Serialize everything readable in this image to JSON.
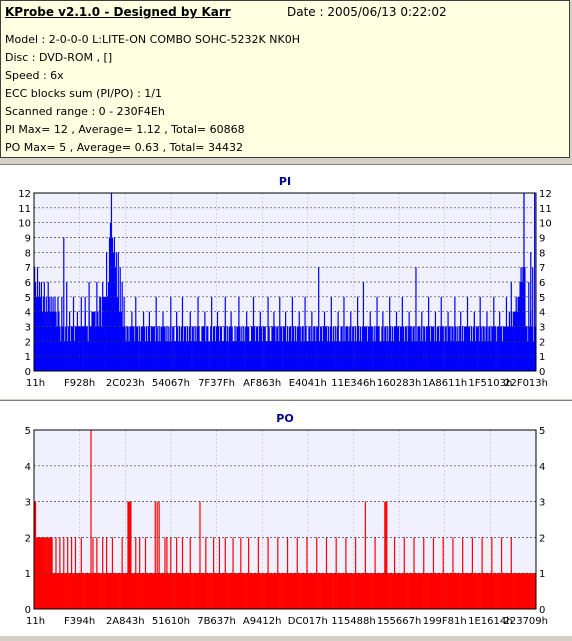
{
  "info": {
    "title": "KProbe v2.1.0 - Designed by Karr",
    "date": "Date : 2005/06/13 0:22:02",
    "lines": [
      "Model : 2-0-0-0 L:LITE-ON COMBO SOHC-5232K NK0H",
      "Disc : DVD-ROM ,  []",
      "Speed : 6x",
      "ECC blocks sum (PI/PO) : 1/1",
      "Scanned range : 0 - 230F4Eh",
      "PI Max= 12 , Average= 1.12 , Total= 60868",
      "PO Max= 5 , Average= 0.63 , Total= 34432"
    ]
  },
  "colors": {
    "pi": "#0000ff",
    "po": "#ff0000",
    "plot_bg": "#f0f0ff",
    "grid": "#404040"
  },
  "chart_data": [
    {
      "type": "bar",
      "title": "PI",
      "ylim": [
        0,
        12
      ],
      "yticks": [
        0,
        1,
        2,
        3,
        4,
        5,
        6,
        7,
        8,
        9,
        10,
        11,
        12
      ],
      "xtick_labels": [
        "11h",
        "F928h",
        "2C023h",
        "54067h",
        "7F37Fh",
        "AF863h",
        "E4041h",
        "11E346h",
        "160283h",
        "1A8611h",
        "1F5103h",
        "22F013h"
      ],
      "grid": true,
      "baseline": [
        4,
        3,
        3,
        2,
        3,
        3,
        4,
        3,
        3,
        2,
        3,
        3,
        3,
        2,
        3,
        2,
        3,
        3,
        2,
        3,
        3,
        2,
        3,
        3,
        3,
        2,
        3,
        2,
        3,
        3,
        3,
        2,
        3,
        3,
        2,
        3,
        3,
        2,
        3,
        3,
        3,
        2,
        3,
        3,
        2,
        3,
        3,
        3,
        2,
        3,
        3,
        3,
        4,
        3,
        3,
        2,
        4,
        3,
        3,
        4,
        2,
        4,
        4,
        3,
        3,
        4,
        3,
        5,
        4,
        3,
        5,
        5,
        5,
        5,
        5,
        5,
        6,
        6,
        7,
        7,
        6,
        6,
        6,
        6,
        5,
        5,
        5,
        4,
        4,
        4,
        3,
        3,
        3,
        3,
        2,
        3,
        3,
        2,
        3,
        3,
        2,
        3,
        3,
        2,
        3,
        3,
        3,
        2,
        3,
        2,
        3,
        3,
        3,
        3,
        2,
        3,
        2,
        3,
        3,
        2,
        3,
        3,
        3,
        3,
        2,
        2,
        3,
        2,
        3,
        2,
        3,
        3,
        2,
        3,
        3,
        2,
        3,
        2,
        3,
        2,
        3,
        2,
        3,
        3,
        2,
        2,
        3,
        3,
        2,
        3,
        2,
        3,
        3,
        2,
        3,
        3,
        2,
        3,
        2,
        3,
        2,
        2,
        3,
        3,
        2,
        3,
        2,
        3,
        2,
        3,
        2,
        2,
        3,
        3,
        3,
        2,
        2,
        3,
        3,
        2,
        2,
        3,
        2,
        2,
        3,
        3,
        2,
        3,
        2,
        3,
        2,
        3,
        3,
        2,
        2,
        3,
        3,
        2,
        3,
        2,
        3,
        3,
        2,
        3,
        2,
        2,
        3,
        2,
        3,
        3,
        2,
        3,
        2,
        3,
        2,
        3,
        2,
        3,
        2,
        3,
        3,
        2,
        2,
        3,
        3,
        2,
        3,
        2,
        3,
        3,
        2,
        3,
        2,
        3,
        2,
        3,
        3,
        3,
        2,
        2,
        3,
        3,
        2,
        2,
        3,
        3,
        2,
        3,
        2,
        3,
        3,
        2,
        2,
        3,
        3,
        2,
        3,
        3,
        2,
        2,
        3,
        2,
        3,
        3,
        2,
        3,
        3,
        2,
        3,
        2,
        3,
        3,
        2,
        3,
        2,
        3,
        3,
        2,
        3,
        3,
        2,
        2,
        3,
        3,
        2,
        3,
        2,
        3,
        3,
        2,
        3,
        3,
        2,
        2,
        3,
        3,
        2,
        3,
        2,
        3,
        3,
        2,
        3,
        2,
        3,
        3,
        2,
        3,
        2,
        3,
        2,
        3,
        3,
        2,
        2,
        3,
        3,
        2,
        3,
        2,
        3,
        3,
        3,
        2,
        3,
        3,
        2,
        3,
        3,
        2,
        3,
        2,
        3,
        3,
        2,
        3,
        2,
        3,
        2,
        3,
        3,
        3,
        2,
        3,
        3,
        2,
        3,
        3,
        2,
        3,
        2,
        3,
        2,
        3,
        3,
        2,
        2,
        3,
        3,
        2,
        3,
        3,
        2,
        3,
        2,
        3,
        3,
        2,
        3,
        2,
        3,
        3,
        2,
        3,
        3,
        2,
        3,
        3,
        2,
        3,
        2,
        3,
        3,
        2,
        3,
        2,
        3,
        3,
        2,
        3,
        3,
        2,
        3,
        2,
        3,
        3,
        3,
        2,
        3,
        2,
        3,
        3,
        2,
        3,
        3,
        2,
        3,
        2,
        3,
        3,
        3,
        2,
        3,
        2,
        3,
        3,
        2,
        3,
        2,
        3,
        3,
        2,
        3,
        3,
        2,
        3,
        3,
        3,
        2,
        3,
        3,
        2,
        3,
        3,
        2,
        3,
        2,
        3,
        3,
        2,
        3,
        2,
        3,
        3,
        3,
        2,
        3,
        3,
        2,
        3,
        2,
        3,
        3,
        2,
        3,
        3,
        3,
        2,
        3,
        3,
        2,
        3,
        3,
        2,
        3,
        3,
        2,
        3,
        3,
        2,
        3,
        3,
        2,
        3,
        3,
        2,
        3,
        3,
        2,
        3,
        3,
        2,
        3,
        3,
        3,
        3,
        3,
        3,
        4,
        3,
        4,
        3,
        4,
        4,
        4,
        5,
        4,
        5,
        5,
        6,
        7,
        6,
        7,
        12
      ],
      "spikes": [
        [
          0,
          7
        ],
        [
          1,
          6
        ],
        [
          2,
          5
        ],
        [
          3,
          7
        ],
        [
          4,
          5
        ],
        [
          5,
          6
        ],
        [
          6,
          5
        ],
        [
          7,
          6
        ],
        [
          8,
          4
        ],
        [
          9,
          5
        ],
        [
          10,
          6
        ],
        [
          11,
          4
        ],
        [
          12,
          5
        ],
        [
          13,
          4
        ],
        [
          14,
          6
        ],
        [
          15,
          5
        ],
        [
          16,
          4
        ],
        [
          17,
          5
        ],
        [
          18,
          4
        ],
        [
          19,
          5
        ],
        [
          20,
          4
        ],
        [
          21,
          5
        ],
        [
          22,
          4
        ],
        [
          24,
          5
        ],
        [
          25,
          4
        ],
        [
          28,
          5
        ],
        [
          30,
          9
        ],
        [
          33,
          6
        ],
        [
          36,
          4
        ],
        [
          40,
          5
        ],
        [
          44,
          4
        ],
        [
          48,
          5
        ],
        [
          52,
          5
        ],
        [
          56,
          6
        ],
        [
          60,
          4
        ],
        [
          64,
          6
        ],
        [
          68,
          5
        ],
        [
          70,
          6
        ],
        [
          74,
          8
        ],
        [
          77,
          9
        ],
        [
          78,
          10
        ],
        [
          79,
          12
        ],
        [
          80,
          9
        ],
        [
          81,
          8
        ],
        [
          82,
          9
        ],
        [
          83,
          7
        ],
        [
          84,
          8
        ],
        [
          86,
          8
        ],
        [
          88,
          7
        ],
        [
          90,
          6
        ],
        [
          92,
          5
        ],
        [
          100,
          4
        ],
        [
          104,
          5
        ],
        [
          112,
          4
        ],
        [
          118,
          4
        ],
        [
          125,
          5
        ],
        [
          132,
          4
        ],
        [
          140,
          5
        ],
        [
          146,
          4
        ],
        [
          152,
          5
        ],
        [
          160,
          4
        ],
        [
          168,
          5
        ],
        [
          175,
          4
        ],
        [
          182,
          5
        ],
        [
          188,
          4
        ],
        [
          196,
          5
        ],
        [
          202,
          4
        ],
        [
          210,
          5
        ],
        [
          218,
          4
        ],
        [
          225,
          5
        ],
        [
          232,
          4
        ],
        [
          240,
          5
        ],
        [
          246,
          4
        ],
        [
          252,
          5
        ],
        [
          258,
          4
        ],
        [
          265,
          5
        ],
        [
          272,
          4
        ],
        [
          278,
          5
        ],
        [
          285,
          4
        ],
        [
          292,
          7
        ],
        [
          298,
          4
        ],
        [
          305,
          5
        ],
        [
          312,
          4
        ],
        [
          318,
          5
        ],
        [
          325,
          4
        ],
        [
          332,
          5
        ],
        [
          338,
          6
        ],
        [
          345,
          4
        ],
        [
          352,
          5
        ],
        [
          358,
          4
        ],
        [
          365,
          5
        ],
        [
          372,
          4
        ],
        [
          378,
          5
        ],
        [
          385,
          4
        ],
        [
          392,
          7
        ],
        [
          398,
          4
        ],
        [
          405,
          5
        ],
        [
          412,
          4
        ],
        [
          418,
          5
        ],
        [
          425,
          4
        ],
        [
          432,
          5
        ],
        [
          438,
          4
        ],
        [
          445,
          5
        ],
        [
          452,
          4
        ],
        [
          458,
          5
        ],
        [
          465,
          4
        ],
        [
          472,
          5
        ],
        [
          478,
          4
        ],
        [
          485,
          5
        ],
        [
          490,
          6
        ],
        [
          494,
          4
        ],
        [
          499,
          5
        ],
        [
          504,
          7
        ],
        [
          508,
          6
        ],
        [
          510,
          8
        ],
        [
          512,
          7
        ],
        [
          514,
          12
        ]
      ]
    },
    {
      "type": "bar",
      "title": "PO",
      "ylim": [
        0,
        5
      ],
      "yticks": [
        0,
        1,
        2,
        3,
        4,
        5
      ],
      "xtick_labels": [
        "11h",
        "F394h",
        "2A843h",
        "51610h",
        "7B637h",
        "A9412h",
        "DC017h",
        "115488h",
        "155667h",
        "199F81h",
        "1E1614h",
        "223709h"
      ],
      "grid": true,
      "baseline_value": 1,
      "spikes": [
        [
          0,
          3
        ],
        [
          1,
          3
        ],
        [
          2,
          2
        ],
        [
          3,
          2
        ],
        [
          4,
          2
        ],
        [
          5,
          2
        ],
        [
          6,
          2
        ],
        [
          7,
          2
        ],
        [
          8,
          2
        ],
        [
          9,
          2
        ],
        [
          10,
          2
        ],
        [
          11,
          2
        ],
        [
          12,
          2
        ],
        [
          13,
          2
        ],
        [
          14,
          2
        ],
        [
          15,
          2
        ],
        [
          16,
          2
        ],
        [
          17,
          2
        ],
        [
          18,
          2
        ],
        [
          22,
          2
        ],
        [
          26,
          2
        ],
        [
          30,
          2
        ],
        [
          34,
          2
        ],
        [
          38,
          2
        ],
        [
          42,
          2
        ],
        [
          48,
          2
        ],
        [
          58,
          5
        ],
        [
          60,
          2
        ],
        [
          64,
          2
        ],
        [
          70,
          2
        ],
        [
          74,
          2
        ],
        [
          80,
          2
        ],
        [
          90,
          2
        ],
        [
          96,
          3
        ],
        [
          97,
          3
        ],
        [
          98,
          3
        ],
        [
          99,
          3
        ],
        [
          104,
          2
        ],
        [
          108,
          2
        ],
        [
          114,
          2
        ],
        [
          124,
          3
        ],
        [
          126,
          3
        ],
        [
          128,
          3
        ],
        [
          134,
          2
        ],
        [
          136,
          2
        ],
        [
          140,
          2
        ],
        [
          146,
          2
        ],
        [
          152,
          2
        ],
        [
          160,
          2
        ],
        [
          170,
          3
        ],
        [
          176,
          2
        ],
        [
          184,
          2
        ],
        [
          190,
          2
        ],
        [
          196,
          2
        ],
        [
          204,
          2
        ],
        [
          212,
          2
        ],
        [
          220,
          2
        ],
        [
          230,
          2
        ],
        [
          240,
          2
        ],
        [
          250,
          2
        ],
        [
          260,
          2
        ],
        [
          270,
          2
        ],
        [
          280,
          2
        ],
        [
          290,
          2
        ],
        [
          300,
          2
        ],
        [
          310,
          2
        ],
        [
          320,
          2
        ],
        [
          330,
          2
        ],
        [
          340,
          3
        ],
        [
          350,
          2
        ],
        [
          360,
          3
        ],
        [
          361,
          3
        ],
        [
          362,
          3
        ],
        [
          370,
          2
        ],
        [
          380,
          2
        ],
        [
          390,
          2
        ],
        [
          400,
          2
        ],
        [
          410,
          2
        ],
        [
          420,
          2
        ],
        [
          430,
          2
        ],
        [
          440,
          2
        ],
        [
          450,
          2
        ],
        [
          460,
          2
        ],
        [
          470,
          2
        ],
        [
          480,
          2
        ],
        [
          490,
          2
        ]
      ]
    }
  ]
}
